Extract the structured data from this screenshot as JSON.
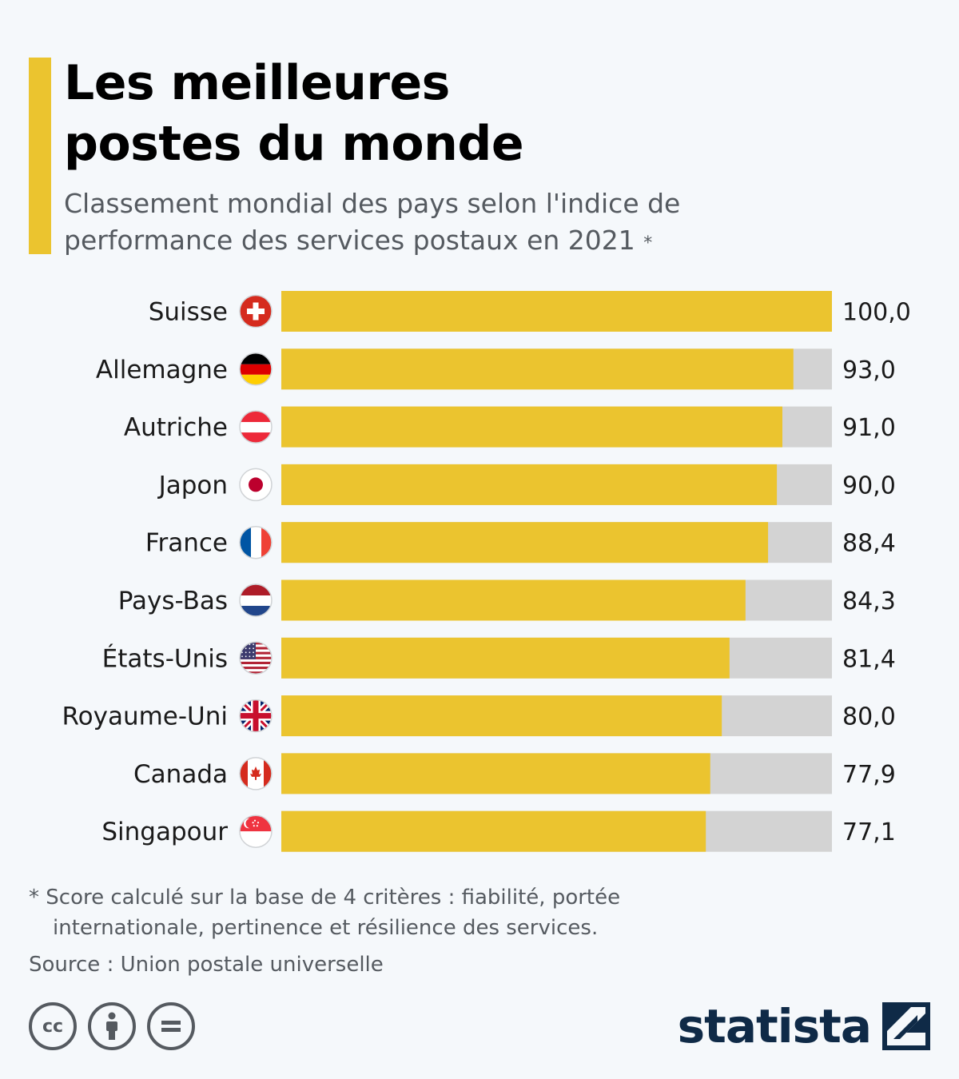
{
  "header": {
    "title_line1": "Les meilleures",
    "title_line2": "postes du monde",
    "subtitle_line1": "Classement mondial des pays selon l'indice de",
    "subtitle_line2": "performance des services postaux en 2021",
    "subtitle_asterisk": "*"
  },
  "chart_data": {
    "type": "bar",
    "orientation": "horizontal",
    "categories": [
      "Suisse",
      "Allemagne",
      "Autriche",
      "Japon",
      "France",
      "Pays-Bas",
      "États-Unis",
      "Royaume-Uni",
      "Canada",
      "Singapour"
    ],
    "values": [
      100.0,
      93.0,
      91.0,
      90.0,
      88.4,
      84.3,
      81.4,
      80.0,
      77.9,
      77.1
    ],
    "value_labels": [
      "100,0",
      "93,0",
      "91,0",
      "90,0",
      "88,4",
      "84,3",
      "81,4",
      "80,0",
      "77,9",
      "77,1"
    ],
    "flags": [
      "flag-switzerland-icon",
      "flag-germany-icon",
      "flag-austria-icon",
      "flag-japan-icon",
      "flag-france-icon",
      "flag-netherlands-icon",
      "flag-usa-icon",
      "flag-uk-icon",
      "flag-canada-icon",
      "flag-singapore-icon"
    ],
    "xlim": [
      0,
      100
    ],
    "grid": false,
    "colors": {
      "bar": "#ebc42f",
      "track": "#d3d3d3"
    }
  },
  "footer": {
    "footnote_line1": "* Score calculé sur la base de 4 critères : fiabilité, portée",
    "footnote_line2": "internationale, pertinence et résilience des services.",
    "source": "Source : Union postale universelle",
    "brand": "statista",
    "license_icons": [
      "cc-icon",
      "by-icon",
      "nd-icon"
    ]
  }
}
